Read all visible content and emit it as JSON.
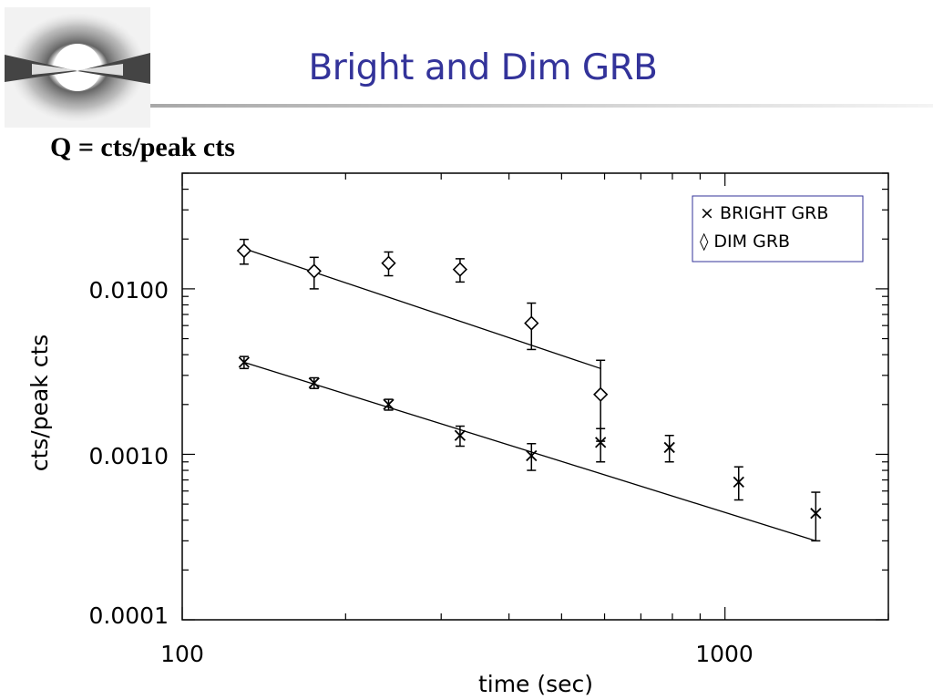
{
  "slide": {
    "title": "Bright and Dim GRB",
    "subtitle": "Q = cts/peak cts"
  },
  "colors": {
    "title": "#33339a",
    "legend_border": "#33339a",
    "marks": "#000000"
  },
  "icons": [
    "grb-jet-logo-icon"
  ],
  "chart_data": {
    "type": "scatter",
    "xlabel": "time (sec)",
    "ylabel": "cts/peak cts",
    "xscale": "log",
    "yscale": "log",
    "xlim": [
      100,
      2000
    ],
    "ylim": [
      0.0001,
      0.05
    ],
    "x_tick_labels": [
      "100",
      "1000"
    ],
    "y_tick_labels": [
      "0.0001",
      "0.0010",
      "0.0100"
    ],
    "legend": {
      "placement": "top-right",
      "entries": [
        "× BRIGHT GRB",
        "◊ DIM GRB"
      ]
    },
    "series": [
      {
        "name": "BRIGHT GRB",
        "marker": "x",
        "x": [
          130,
          175,
          240,
          325,
          440,
          590,
          790,
          1060,
          1470
        ],
        "y": [
          0.0036,
          0.0027,
          0.002,
          0.0013,
          0.00098,
          0.00118,
          0.0011,
          0.00068,
          0.00044
        ],
        "y_err_low": [
          0.0003,
          0.0002,
          0.00015,
          0.00018,
          0.00018,
          0.00028,
          0.0002,
          0.00015,
          0.00014
        ],
        "y_err_high": [
          0.0003,
          0.0002,
          0.00015,
          0.00018,
          0.00018,
          0.00025,
          0.0002,
          0.00016,
          0.00015
        ],
        "fit": {
          "x": [
            130,
            1470
          ],
          "y": [
            0.0036,
            0.0003
          ]
        }
      },
      {
        "name": "DIM GRB",
        "marker": "diamond",
        "x": [
          130,
          175,
          240,
          325,
          440,
          590
        ],
        "y": [
          0.017,
          0.0128,
          0.0143,
          0.0131,
          0.0062,
          0.0023
        ],
        "y_err_low": [
          0.0029,
          0.0028,
          0.0023,
          0.0021,
          0.0019,
          0.0011
        ],
        "y_err_high": [
          0.0029,
          0.0027,
          0.0024,
          0.0021,
          0.002,
          0.0014
        ],
        "fit": {
          "x": [
            130,
            590
          ],
          "y": [
            0.0175,
            0.0033
          ]
        }
      }
    ]
  }
}
